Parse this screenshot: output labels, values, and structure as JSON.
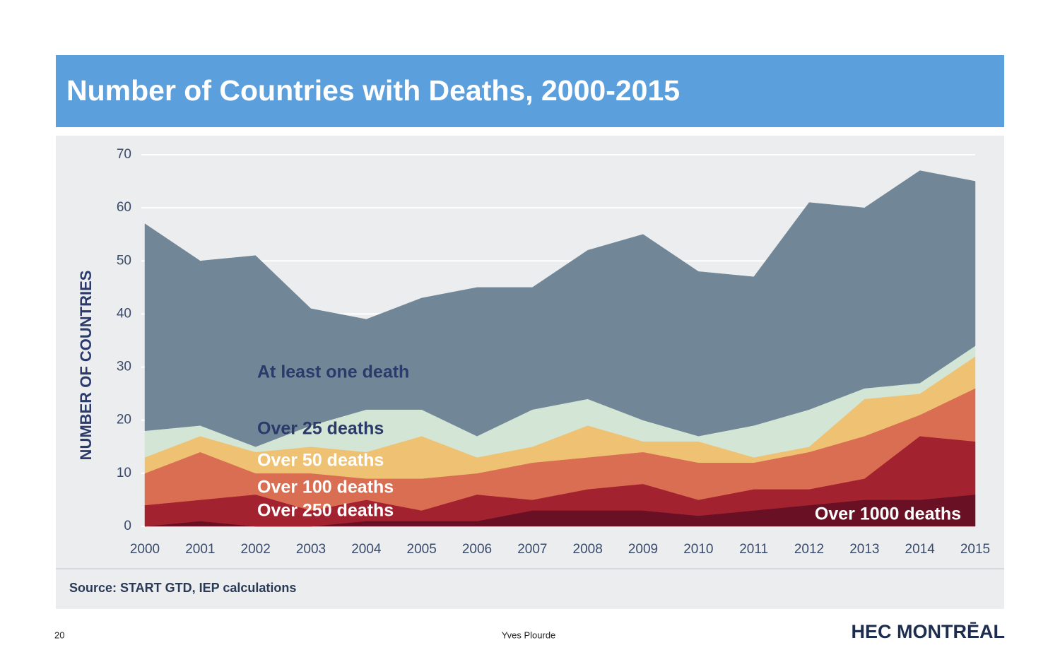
{
  "chart_data": {
    "type": "stacked_area",
    "title": "Number of Countries with Deaths, 2000-2015",
    "y_label": "NUMBER OF COUNTRIES",
    "source": "Source: START GTD, IEP calculations",
    "x": [
      2000,
      2001,
      2002,
      2003,
      2004,
      2005,
      2006,
      2007,
      2008,
      2009,
      2010,
      2011,
      2012,
      2013,
      2014,
      2015
    ],
    "xlim": [
      2000,
      2015
    ],
    "ylim": [
      0,
      70
    ],
    "yticks": [
      0,
      10,
      20,
      30,
      40,
      50,
      60,
      70
    ],
    "grid": true,
    "series": [
      {
        "name": "Over 1000 deaths",
        "color": "#6a1024",
        "values": [
          0,
          1,
          0,
          0,
          1,
          1,
          1,
          3,
          3,
          3,
          2,
          3,
          4,
          5,
          5,
          6
        ]
      },
      {
        "name": "Over 250 deaths",
        "color": "#a3222f",
        "values": [
          4,
          4,
          6,
          3,
          4,
          2,
          5,
          2,
          4,
          5,
          3,
          4,
          3,
          4,
          12,
          10
        ]
      },
      {
        "name": "Over 100 deaths",
        "color": "#d96e52",
        "values": [
          6,
          9,
          4,
          7,
          4,
          6,
          4,
          7,
          6,
          6,
          7,
          5,
          7,
          8,
          4,
          10
        ]
      },
      {
        "name": "Over 50 deaths",
        "color": "#efc172",
        "values": [
          3,
          3,
          4,
          5,
          5,
          8,
          3,
          3,
          6,
          2,
          4,
          1,
          1,
          7,
          4,
          6
        ]
      },
      {
        "name": "Over 25 deaths",
        "color": "#d3e5d4",
        "values": [
          5,
          2,
          1,
          4,
          8,
          5,
          4,
          7,
          5,
          4,
          1,
          6,
          7,
          2,
          2,
          2
        ]
      },
      {
        "name": "At least one death",
        "color": "#718797",
        "values": [
          39,
          31,
          36,
          22,
          17,
          21,
          28,
          23,
          28,
          35,
          31,
          28,
          39,
          34,
          40,
          31
        ]
      }
    ]
  },
  "footer": {
    "page_number": "20",
    "author": "Yves Plourde",
    "logo": "HEC MONTRĒAL"
  }
}
